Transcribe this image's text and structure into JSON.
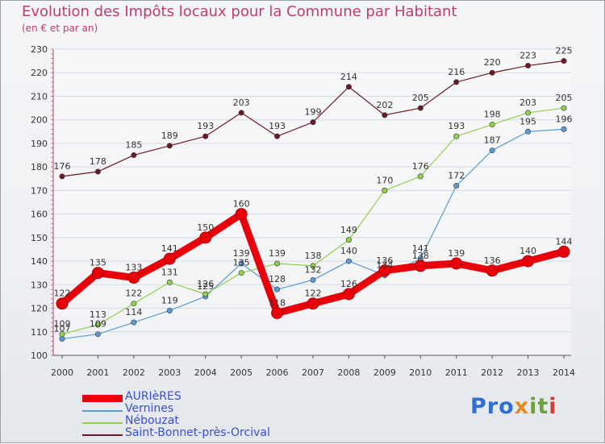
{
  "title": "Evolution des Impôts locaux pour la Commune par Habitant",
  "subtitle": "(en € et par an)",
  "logo": "Proxiti",
  "logo_parts": [
    "Pro",
    "x",
    "it",
    "i"
  ],
  "chart_data": {
    "type": "line",
    "title": "Evolution des Impôts locaux pour la Commune par Habitant",
    "subtitle": "(en € et par an)",
    "xlabel": "",
    "ylabel": "",
    "x": [
      "2000",
      "2001",
      "2002",
      "2003",
      "2004",
      "2005",
      "2006",
      "2007",
      "2008",
      "2009",
      "2010",
      "2011",
      "2012",
      "2013",
      "2014"
    ],
    "ylim": [
      100,
      230
    ],
    "yticks": [
      100,
      110,
      120,
      130,
      140,
      150,
      160,
      170,
      180,
      190,
      200,
      210,
      220,
      230
    ],
    "grid": true,
    "legend_position": "bottom-left",
    "series": [
      {
        "name": "AURIèRES",
        "color": "#e8000a",
        "emphasis": true,
        "values": [
          122,
          135,
          133,
          141,
          150,
          160,
          118,
          122,
          126,
          136,
          138,
          139,
          136,
          140,
          144
        ]
      },
      {
        "name": "Vernines",
        "color": "#5b9bd5",
        "values": [
          107,
          109,
          114,
          119,
          125,
          139,
          128,
          132,
          140,
          134,
          141,
          172,
          187,
          195,
          196
        ]
      },
      {
        "name": "Nébouzat",
        "color": "#92d050",
        "values": [
          109,
          113,
          122,
          131,
          126,
          135,
          139,
          138,
          149,
          170,
          176,
          193,
          198,
          203,
          205
        ]
      },
      {
        "name": "Saint-Bonnet-près-Orcival",
        "color": "#6b1a25",
        "values": [
          176,
          178,
          185,
          189,
          193,
          203,
          193,
          199,
          214,
          202,
          205,
          216,
          220,
          223,
          225
        ]
      }
    ]
  }
}
